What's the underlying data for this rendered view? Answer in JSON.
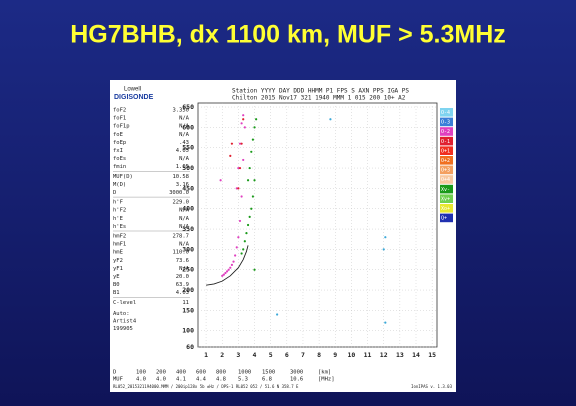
{
  "slide_title": "HG7BHB, dx 1100 km, MUF > 5.3MHz",
  "logo": [
    "Lowell",
    "DIGISONDE"
  ],
  "header": [
    "Station YYYY DAY  DDD HHMM P1  FPS S AXN PPS IGA PS",
    "Chilton 2015 Nov17 321 1940 MMM    1 015 200 10+ A2"
  ],
  "parameters": [
    [
      "foF2",
      "3.350"
    ],
    [
      "foF1",
      "N/A"
    ],
    [
      "foF1p",
      "N/A"
    ],
    [
      "foE",
      "N/A"
    ],
    [
      "foEp",
      ".43"
    ],
    [
      "fxI",
      "4.05"
    ],
    [
      "foEs",
      "N/A"
    ],
    [
      "fmin",
      "1.65"
    ],
    [
      "MUF(D)",
      "10.58"
    ],
    [
      "M(D)",
      "3.16"
    ],
    [
      "D",
      "3000.0"
    ],
    [
      "h'F",
      "229.0"
    ],
    [
      "h'F2",
      "N/A"
    ],
    [
      "h'E",
      "N/A"
    ],
    [
      "h'Es",
      "N/A"
    ],
    [
      "hmF2",
      "278.7"
    ],
    [
      "hmF1",
      "N/A"
    ],
    [
      "hmE",
      "110.0"
    ],
    [
      "yF2",
      "73.6"
    ],
    [
      "yF1",
      "N/A"
    ],
    [
      "yE",
      "20.0"
    ],
    [
      "B0",
      "63.9"
    ],
    [
      "B1",
      "4.03"
    ],
    [
      "C-level",
      "11"
    ]
  ],
  "autoscaling": [
    "Auto:",
    "Artist4",
    "199905"
  ],
  "legend_chips": [
    {
      "label": "O-4",
      "color": "#7fd4f0"
    },
    {
      "label": "O-3",
      "color": "#3a7fd8"
    },
    {
      "label": "O-2",
      "color": "#e040c0"
    },
    {
      "label": "O-1",
      "color": "#e02030"
    },
    {
      "label": "O+1",
      "color": "#f03020"
    },
    {
      "label": "O+2",
      "color": "#f07020"
    },
    {
      "label": "O+3",
      "color": "#f4a060"
    },
    {
      "label": "O+4",
      "color": "#f8c8a0"
    },
    {
      "label": "Xv-",
      "color": "#1a9a1a"
    },
    {
      "label": "Xv+",
      "color": "#70d050"
    },
    {
      "label": "Xo+",
      "color": "#e8e830"
    },
    {
      "label": "Q+",
      "color": "#2030b0"
    }
  ],
  "muf_table": [
    [
      "D",
      "100",
      "200",
      "400",
      "600",
      "800",
      "1000",
      "1500",
      "3000",
      "[km]"
    ],
    [
      "MUF",
      "4.0",
      "4.0",
      "4.1",
      "4.4",
      "4.8",
      "5.3",
      "6.8",
      "10.6",
      "[MHz]"
    ]
  ],
  "footer": [
    "RL052_2015321194000.MMM / 200ip128x 5b ±Hz / DPS-1 RL052 052 / 51.6 N 358.7 E",
    "IonIPAS v. 1.3.03"
  ],
  "chart_data": {
    "type": "scatter",
    "grid": true,
    "xlim": [
      0.5,
      15.3
    ],
    "xticks": [
      1,
      2,
      3,
      4,
      5,
      6,
      7,
      8,
      9,
      10,
      11,
      12,
      13,
      14,
      15
    ],
    "ylim": [
      60,
      660
    ],
    "yticks": [
      60,
      100,
      150,
      200,
      250,
      300,
      350,
      400,
      450,
      500,
      550,
      600,
      650
    ],
    "series": [
      {
        "name": "O-2",
        "color": "#e040c0",
        "x": [
          1.9,
          2.0,
          2.1,
          2.2,
          2.3,
          2.4,
          2.5,
          2.6,
          2.7,
          2.8,
          2.9,
          3.0,
          3.1,
          3.2,
          3.3,
          2.9,
          3.0,
          3.1,
          3.2,
          3.3,
          3.4
        ],
        "values": [
          470,
          235,
          238,
          242,
          246,
          250,
          255,
          262,
          270,
          285,
          305,
          330,
          370,
          430,
          520,
          450,
          500,
          560,
          610,
          630,
          600
        ]
      },
      {
        "name": "Xv-",
        "color": "#1a9a1a",
        "x": [
          3.2,
          3.3,
          3.4,
          3.5,
          3.6,
          3.7,
          3.8,
          3.9,
          4.0,
          3.7,
          3.8,
          3.9,
          4.0,
          4.1,
          3.6,
          4.0
        ],
        "values": [
          290,
          300,
          320,
          340,
          360,
          380,
          400,
          430,
          470,
          500,
          540,
          570,
          600,
          620,
          470,
          250
        ]
      },
      {
        "name": "O-1",
        "color": "#e02030",
        "x": [
          3.0,
          3.1,
          3.2,
          3.3,
          2.5,
          2.6
        ],
        "values": [
          450,
          500,
          560,
          620,
          530,
          560
        ]
      },
      {
        "name": "O-4",
        "color": "#3aa8d8",
        "x": [
          12.0,
          12.1,
          12.1,
          8.7,
          5.4
        ],
        "values": [
          300,
          330,
          120,
          620,
          140
        ]
      },
      {
        "color": "#222222",
        "mode": "line",
        "x": [
          1,
          1.5,
          2,
          2.5,
          3,
          3.3,
          3.5,
          3.6
        ],
        "values": [
          212,
          215,
          222,
          235,
          255,
          275,
          295,
          310
        ]
      }
    ]
  }
}
